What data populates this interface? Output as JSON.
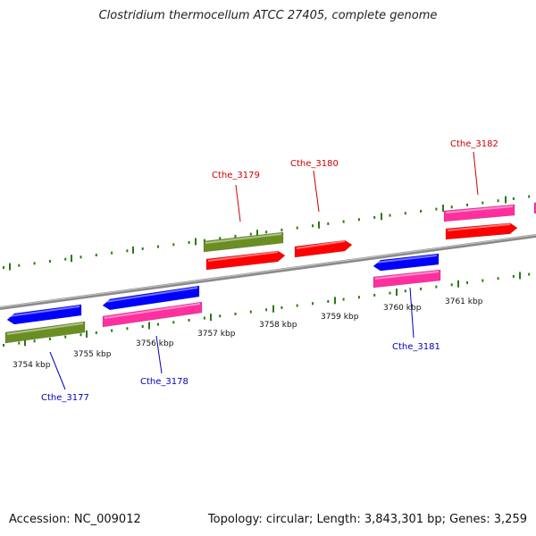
{
  "title": "Clostridium thermocellum ATCC 27405, complete genome",
  "footer": {
    "accession": "Accession: NC_009012",
    "summary": "Topology: circular; Length: 3,843,301 bp; Genes: 3,259"
  },
  "colors": {
    "backbone": "#888888",
    "ticks": "#2a7a10",
    "upper_label": "#cc0000",
    "lower_label": "#0000bb",
    "cds_forward": "#ff0000",
    "cds_reverse": "#0000ff",
    "gene_forward": "#ff2fa0",
    "gene_olive": "#6b8e23"
  },
  "scale_labels": [
    "3754 kbp",
    "3755 kbp",
    "3756 kbp",
    "3757 kbp",
    "3758 kbp",
    "3759 kbp",
    "3760 kbp",
    "3761 kbp"
  ],
  "gene_labels": {
    "cthe_3177": "Cthe_3177",
    "cthe_3178": "Cthe_3178",
    "cthe_3179": "Cthe_3179",
    "cthe_3180": "Cthe_3180",
    "cthe_3181": "Cthe_3181",
    "cthe_3182": "Cthe_3182"
  }
}
